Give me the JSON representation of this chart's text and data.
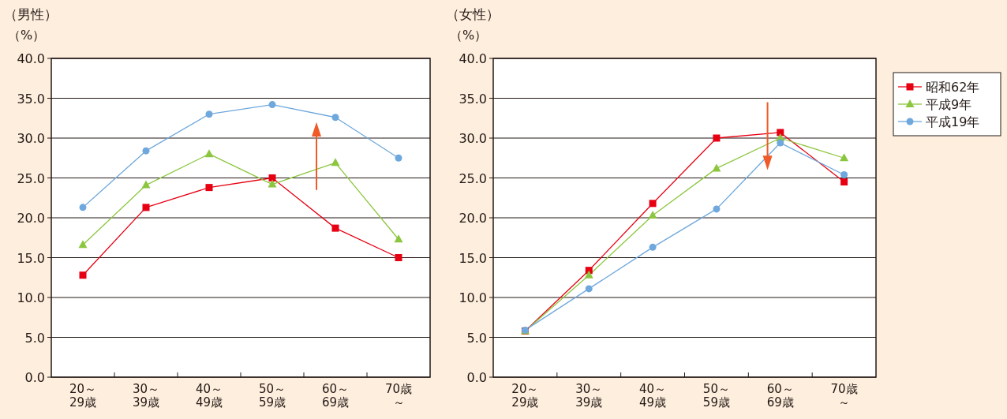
{
  "chart_data": [
    {
      "type": "line",
      "title": "（男性）",
      "ylabel": "（%）",
      "categories": [
        "20～29歳",
        "30～39歳",
        "40～49歳",
        "50～59歳",
        "60～69歳",
        "70歳～"
      ],
      "ylim": [
        0,
        40
      ],
      "yticks": [
        {
          "value": 0,
          "label": "0.0"
        },
        {
          "value": 5,
          "label": "5.0"
        },
        {
          "value": 10,
          "label": "10.0"
        },
        {
          "value": 15,
          "label": "15.0"
        },
        {
          "value": 20,
          "label": "20.0"
        },
        {
          "value": 25,
          "label": "25.0"
        },
        {
          "value": 30,
          "label": "30.0"
        },
        {
          "value": 35,
          "label": "35.0"
        },
        {
          "value": 40,
          "label": "40.0"
        }
      ],
      "grid": "y",
      "legend": false,
      "series": [
        {
          "color": "#e60012",
          "marker": "square",
          "values": [
            12.8,
            21.3,
            23.8,
            25.0,
            18.7,
            15.0
          ]
        },
        {
          "color": "#8cc63f",
          "marker": "triangle",
          "values": [
            16.6,
            24.1,
            28.0,
            24.2,
            26.9,
            17.3
          ]
        },
        {
          "color": "#6fa8dc",
          "marker": "circle",
          "values": [
            21.3,
            28.4,
            33.0,
            34.2,
            32.6,
            27.5
          ]
        }
      ]
    },
    {
      "type": "line",
      "title": "（女性）",
      "ylabel": "（%）",
      "categories": [
        "20～29歳",
        "30～39歳",
        "40～49歳",
        "50～59歳",
        "60～69歳",
        "70歳～"
      ],
      "ylim": [
        0,
        40
      ],
      "yticks": [
        {
          "value": 0,
          "label": "0.0"
        },
        {
          "value": 5,
          "label": "5.0"
        },
        {
          "value": 10,
          "label": "10.0"
        },
        {
          "value": 15,
          "label": "15.0"
        },
        {
          "value": 20,
          "label": "20.0"
        },
        {
          "value": 25,
          "label": "25.0"
        },
        {
          "value": 30,
          "label": "30.0"
        },
        {
          "value": 35,
          "label": "35.0"
        },
        {
          "value": 40,
          "label": "40.0"
        }
      ],
      "grid": "y",
      "legend": "right",
      "series": [
        {
          "name": "昭和62年",
          "color": "#e60012",
          "marker": "square",
          "values": [
            5.8,
            13.4,
            21.8,
            30.0,
            30.7,
            24.5
          ]
        },
        {
          "name": "平成9年",
          "color": "#8cc63f",
          "marker": "triangle",
          "values": [
            5.8,
            12.8,
            20.3,
            26.2,
            30.0,
            27.5
          ]
        },
        {
          "name": "平成19年",
          "color": "#6fa8dc",
          "marker": "circle",
          "values": [
            5.9,
            11.1,
            16.3,
            21.1,
            29.4,
            25.4
          ]
        }
      ]
    }
  ]
}
